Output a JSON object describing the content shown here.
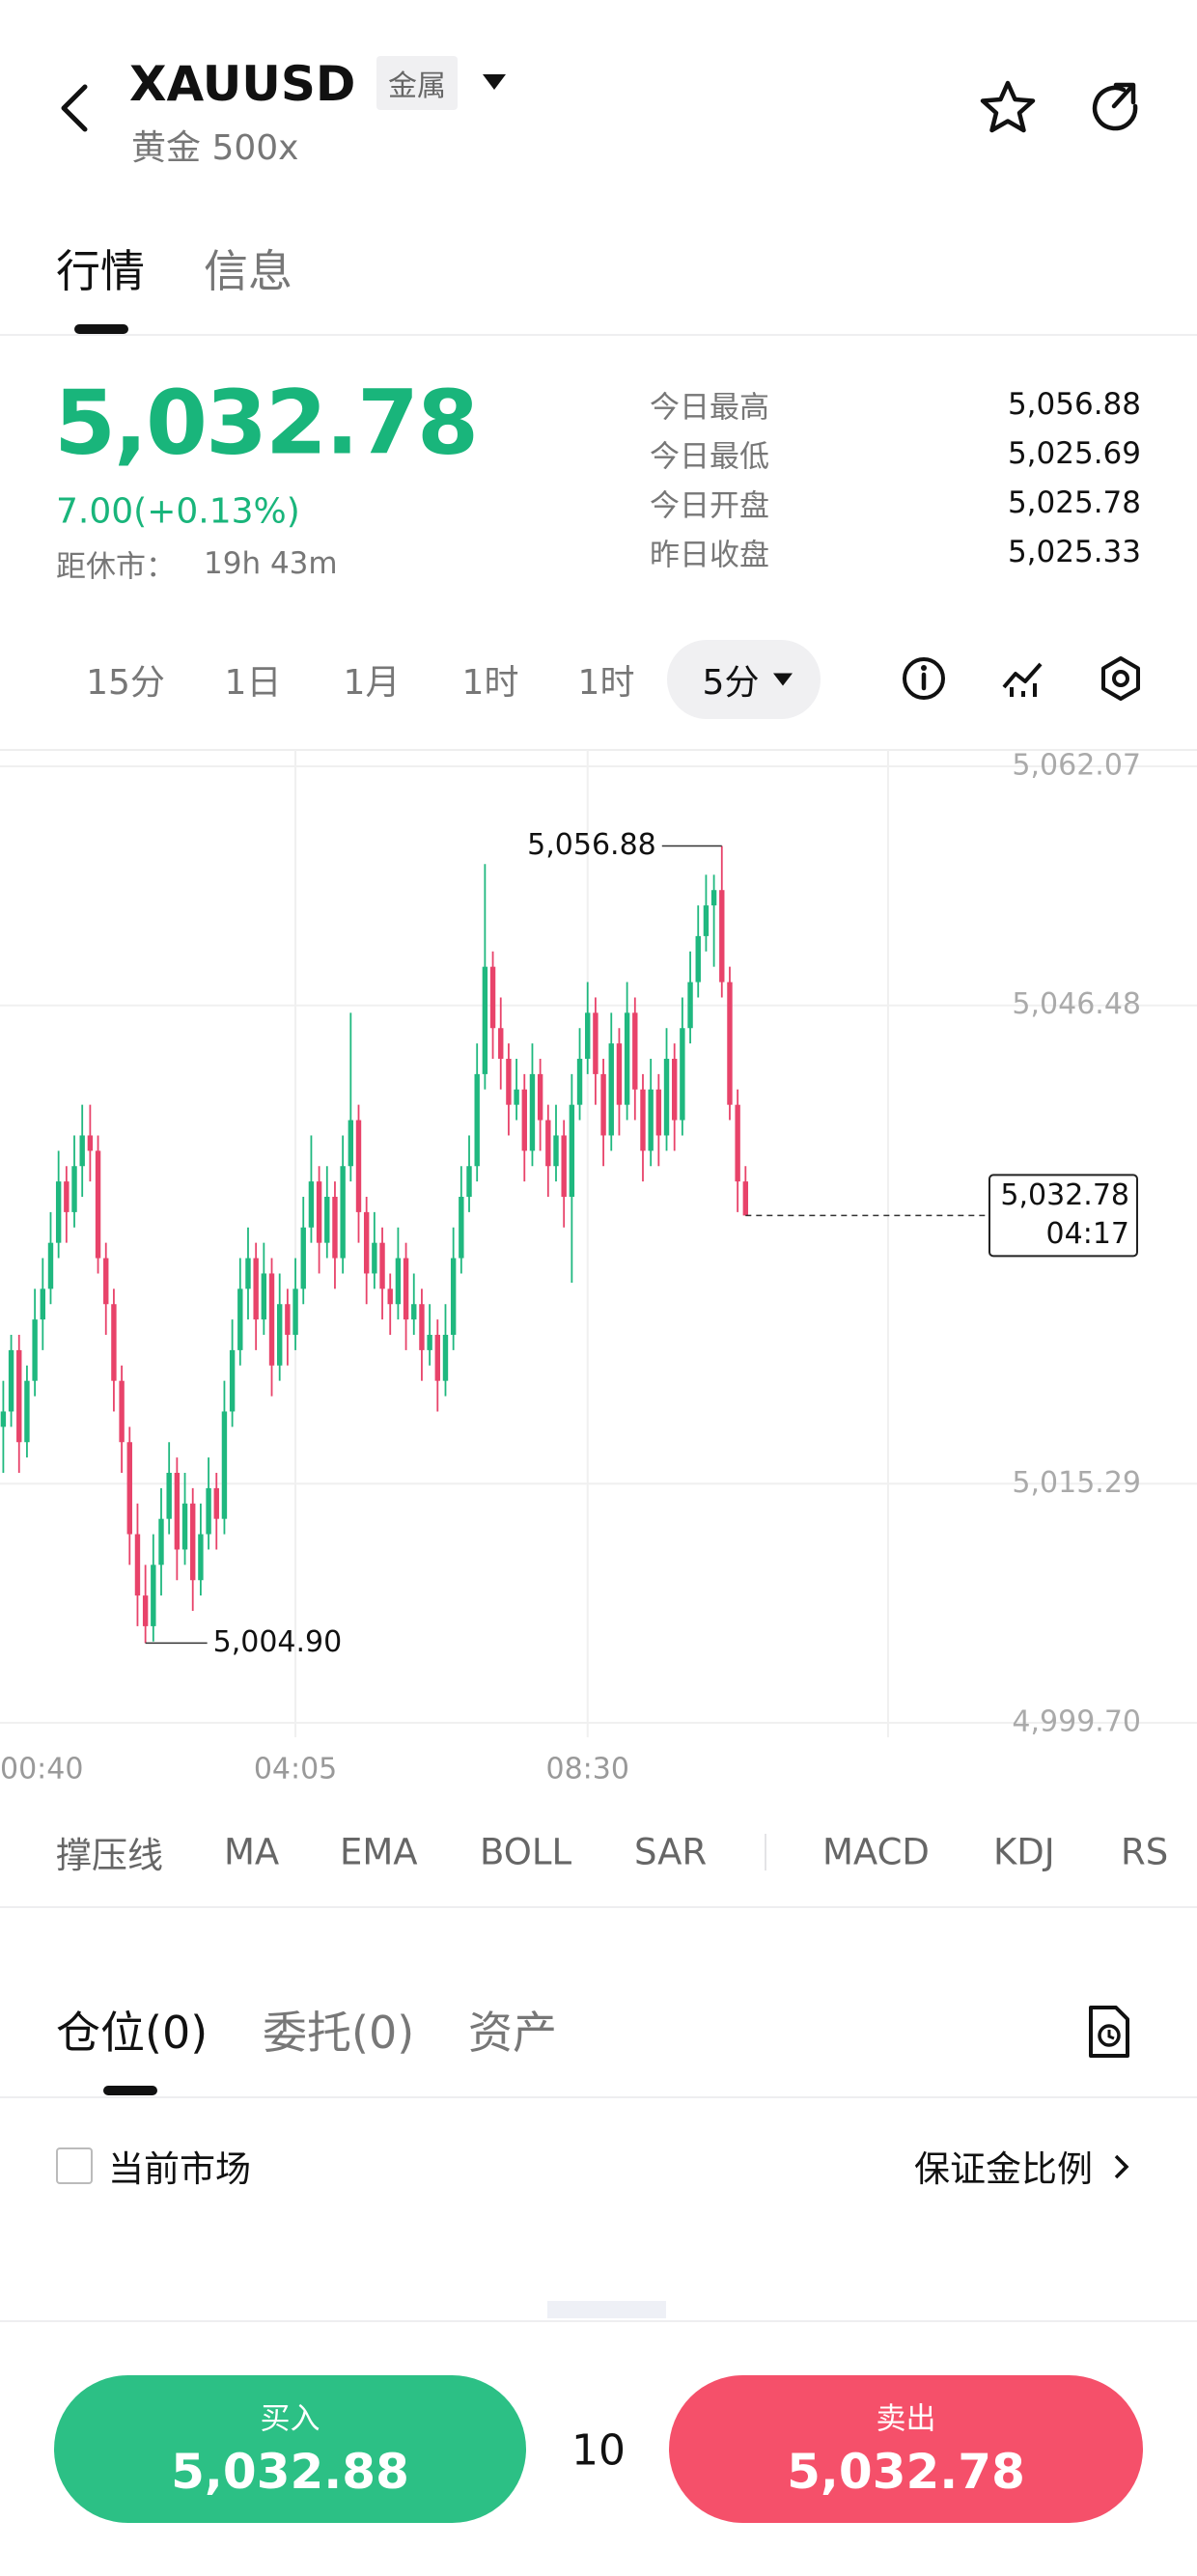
{
  "header": {
    "symbol": "XAUUSD",
    "tag": "金属",
    "subtitle": "黄金 500x"
  },
  "tabs": {
    "items": [
      "行情",
      "信息"
    ],
    "active": 0
  },
  "quote": {
    "price": "5,032.78",
    "change": "7.00(+0.13%)",
    "close_label": "距休市：",
    "close_time": "19h 43m",
    "stats": [
      {
        "label": "今日最高",
        "value": "5,056.88"
      },
      {
        "label": "今日最低",
        "value": "5,025.69"
      },
      {
        "label": "今日开盘",
        "value": "5,025.78"
      },
      {
        "label": "昨日收盘",
        "value": "5,025.33"
      }
    ]
  },
  "timeframes": {
    "items": [
      "15分",
      "1日",
      "1月",
      "1时",
      "1时",
      "5分"
    ],
    "active": 5
  },
  "chart_data": {
    "type": "candlestick",
    "up_color": "#1fb87f",
    "down_color": "#e8436a",
    "grid": true,
    "ylim": [
      4999.7,
      5062.07
    ],
    "yticks": [
      {
        "value": 5062.07,
        "label": "5,062.07"
      },
      {
        "value": 5046.48,
        "label": "5,046.48"
      },
      {
        "value": 5015.29,
        "label": "5,015.29"
      },
      {
        "value": 4999.7,
        "label": "4,999.70"
      }
    ],
    "xticks": [
      {
        "value": 0,
        "label": "00:40"
      },
      {
        "value": 37,
        "label": "04:05"
      },
      {
        "value": 74,
        "label": "08:30"
      }
    ],
    "ohlc": [
      [
        5019,
        5022,
        5016,
        5020
      ],
      [
        5020,
        5025,
        5019,
        5024
      ],
      [
        5024,
        5025,
        5016,
        5018
      ],
      [
        5018,
        5023,
        5017,
        5022
      ],
      [
        5022,
        5028,
        5021,
        5026
      ],
      [
        5026,
        5030,
        5024,
        5028
      ],
      [
        5028,
        5033,
        5027,
        5031
      ],
      [
        5031,
        5037,
        5030,
        5035
      ],
      [
        5035,
        5036,
        5031,
        5033
      ],
      [
        5033,
        5038,
        5032,
        5036
      ],
      [
        5036,
        5040,
        5034,
        5038
      ],
      [
        5038,
        5040,
        5035,
        5037
      ],
      [
        5037,
        5038,
        5029,
        5030
      ],
      [
        5030,
        5031,
        5025,
        5027
      ],
      [
        5027,
        5028,
        5020,
        5022
      ],
      [
        5022,
        5023,
        5016,
        5018
      ],
      [
        5018,
        5019,
        5010,
        5012
      ],
      [
        5012,
        5014,
        5006,
        5008
      ],
      [
        5008,
        5010,
        5004.9,
        5006
      ],
      [
        5006,
        5012,
        5005,
        5010
      ],
      [
        5010,
        5015,
        5008,
        5013
      ],
      [
        5013,
        5018,
        5012,
        5016
      ],
      [
        5016,
        5017,
        5009,
        5011
      ],
      [
        5011,
        5016,
        5010,
        5014
      ],
      [
        5014,
        5015,
        5007,
        5009
      ],
      [
        5009,
        5014,
        5008,
        5012
      ],
      [
        5012,
        5017,
        5011,
        5015
      ],
      [
        5015,
        5016,
        5011,
        5013
      ],
      [
        5013,
        5022,
        5012,
        5020
      ],
      [
        5020,
        5026,
        5019,
        5024
      ],
      [
        5024,
        5030,
        5023,
        5028
      ],
      [
        5028,
        5032,
        5026,
        5030
      ],
      [
        5030,
        5031,
        5024,
        5026
      ],
      [
        5026,
        5031,
        5025,
        5029
      ],
      [
        5029,
        5030,
        5021,
        5023
      ],
      [
        5023,
        5029,
        5022,
        5027
      ],
      [
        5027,
        5028,
        5023,
        5025
      ],
      [
        5025,
        5030,
        5024,
        5028
      ],
      [
        5028,
        5034,
        5027,
        5032
      ],
      [
        5032,
        5038,
        5031,
        5035
      ],
      [
        5035,
        5036,
        5029,
        5031
      ],
      [
        5031,
        5036,
        5030,
        5034
      ],
      [
        5034,
        5035,
        5028,
        5030
      ],
      [
        5030,
        5038,
        5029,
        5036
      ],
      [
        5036,
        5046,
        5035,
        5039
      ],
      [
        5039,
        5040,
        5031,
        5033
      ],
      [
        5033,
        5034,
        5027,
        5029
      ],
      [
        5029,
        5033,
        5028,
        5031
      ],
      [
        5031,
        5032,
        5026,
        5028
      ],
      [
        5028,
        5029,
        5025,
        5027
      ],
      [
        5027,
        5032,
        5026,
        5030
      ],
      [
        5030,
        5031,
        5024,
        5026
      ],
      [
        5026,
        5029,
        5025,
        5027
      ],
      [
        5027,
        5028,
        5022,
        5024
      ],
      [
        5024,
        5027,
        5023,
        5025
      ],
      [
        5025,
        5026,
        5020,
        5022
      ],
      [
        5022,
        5027,
        5021,
        5025
      ],
      [
        5025,
        5032,
        5024,
        5030
      ],
      [
        5030,
        5036,
        5029,
        5034
      ],
      [
        5034,
        5038,
        5033,
        5036
      ],
      [
        5036,
        5044,
        5035,
        5042
      ],
      [
        5042,
        5055.7,
        5041,
        5049
      ],
      [
        5049,
        5050,
        5043,
        5045
      ],
      [
        5045,
        5047,
        5041,
        5043
      ],
      [
        5043,
        5044,
        5038,
        5040
      ],
      [
        5040,
        5043,
        5039,
        5041
      ],
      [
        5041,
        5042,
        5035,
        5037
      ],
      [
        5037,
        5044,
        5036,
        5042
      ],
      [
        5042,
        5043,
        5037,
        5039
      ],
      [
        5039,
        5040,
        5034,
        5036
      ],
      [
        5036,
        5040,
        5035,
        5038
      ],
      [
        5038,
        5039,
        5032,
        5034
      ],
      [
        5034,
        5042,
        5028.4,
        5040
      ],
      [
        5040,
        5045,
        5039,
        5043
      ],
      [
        5043,
        5048,
        5042,
        5046
      ],
      [
        5046,
        5047,
        5040,
        5042
      ],
      [
        5042,
        5043,
        5036,
        5038
      ],
      [
        5038,
        5046,
        5037,
        5044
      ],
      [
        5044,
        5045,
        5038,
        5040
      ],
      [
        5040,
        5048,
        5039,
        5046
      ],
      [
        5046,
        5047,
        5039,
        5041
      ],
      [
        5041,
        5042,
        5035,
        5037
      ],
      [
        5037,
        5043,
        5036,
        5041
      ],
      [
        5041,
        5042,
        5036,
        5038
      ],
      [
        5038,
        5045,
        5037,
        5043
      ],
      [
        5043,
        5044,
        5037,
        5039
      ],
      [
        5039,
        5047,
        5038,
        5045
      ],
      [
        5045,
        5050,
        5044,
        5048
      ],
      [
        5048,
        5053,
        5047,
        5051
      ],
      [
        5051,
        5055,
        5050,
        5053
      ],
      [
        5053,
        5055,
        5049,
        5054
      ],
      [
        5054,
        5056.88,
        5047,
        5048
      ],
      [
        5048,
        5049,
        5039,
        5040
      ],
      [
        5040,
        5041,
        5033,
        5035
      ],
      [
        5035,
        5036,
        5032.78,
        5032.78
      ]
    ],
    "annotations": [
      {
        "x": 91,
        "value": 5056.88,
        "label": "5,056.88"
      },
      {
        "x": 18,
        "value": 5004.9,
        "label": "5,004.90"
      }
    ],
    "current": {
      "value": 5032.78,
      "label": "5,032.78",
      "countdown": "04:17"
    }
  },
  "indicators": [
    "撑压线",
    "MA",
    "EMA",
    "BOLL",
    "SAR",
    "MACD",
    "KDJ",
    "RS"
  ],
  "positions": {
    "tabs": [
      "仓位(0)",
      "委托(0)",
      "资产"
    ],
    "active": 0,
    "filter": "当前市场",
    "margin": "保证金比例"
  },
  "trade": {
    "buy_label": "买入",
    "buy_price": "5,032.88",
    "quantity": "10",
    "sell_label": "卖出",
    "sell_price": "5,032.78"
  }
}
